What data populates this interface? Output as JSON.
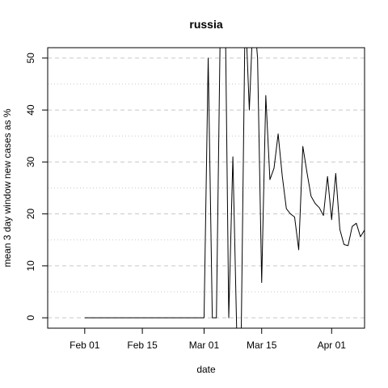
{
  "chart_data": {
    "type": "line",
    "title": "russia",
    "xlabel": "date",
    "ylabel": "mean  3  day window new cases as %",
    "x_axis": {
      "type": "date",
      "range": [
        "2020-01-23",
        "2020-04-09"
      ],
      "ticks": [
        {
          "date": "2020-02-01",
          "label": "Feb 01"
        },
        {
          "date": "2020-02-15",
          "label": "Feb 15"
        },
        {
          "date": "2020-03-01",
          "label": "Mar 01"
        },
        {
          "date": "2020-03-15",
          "label": "Mar 15"
        },
        {
          "date": "2020-04-01",
          "label": "Apr 01"
        }
      ]
    },
    "y_axis": {
      "range": [
        -2,
        52
      ],
      "ticks": [
        0,
        10,
        20,
        30,
        40,
        50
      ],
      "grid": "dashed",
      "minor_grid": "dotted"
    },
    "series": [
      {
        "color": "#000000",
        "points": [
          [
            "2020-02-01",
            0
          ],
          [
            "2020-02-02",
            0
          ],
          [
            "2020-02-03",
            0
          ],
          [
            "2020-02-04",
            0
          ],
          [
            "2020-02-05",
            0
          ],
          [
            "2020-02-06",
            0
          ],
          [
            "2020-02-07",
            0
          ],
          [
            "2020-02-08",
            0
          ],
          [
            "2020-02-09",
            0
          ],
          [
            "2020-02-10",
            0
          ],
          [
            "2020-02-11",
            0
          ],
          [
            "2020-02-12",
            0
          ],
          [
            "2020-02-13",
            0
          ],
          [
            "2020-02-14",
            0
          ],
          [
            "2020-02-15",
            0
          ],
          [
            "2020-02-16",
            0
          ],
          [
            "2020-02-17",
            0
          ],
          [
            "2020-02-18",
            0
          ],
          [
            "2020-02-19",
            0
          ],
          [
            "2020-02-20",
            0
          ],
          [
            "2020-02-21",
            0
          ],
          [
            "2020-02-22",
            0
          ],
          [
            "2020-02-23",
            0
          ],
          [
            "2020-02-24",
            0
          ],
          [
            "2020-02-25",
            0
          ],
          [
            "2020-02-26",
            0
          ],
          [
            "2020-02-27",
            0
          ],
          [
            "2020-02-28",
            0
          ],
          [
            "2020-02-29",
            0
          ],
          [
            "2020-03-01",
            0
          ],
          [
            "2020-03-02",
            50
          ],
          [
            "2020-03-03",
            0
          ],
          [
            "2020-03-04",
            0
          ],
          [
            "2020-03-05",
            60
          ],
          [
            "2020-03-06",
            70
          ],
          [
            "2020-03-07",
            0
          ],
          [
            "2020-03-08",
            31
          ],
          [
            "2020-03-09",
            -5
          ],
          [
            "2020-03-10",
            -5
          ],
          [
            "2020-03-11",
            60
          ],
          [
            "2020-03-12",
            40
          ],
          [
            "2020-03-13",
            60
          ],
          [
            "2020-03-14",
            50
          ],
          [
            "2020-03-15",
            6.8
          ],
          [
            "2020-03-16",
            42.8
          ],
          [
            "2020-03-17",
            26.6
          ],
          [
            "2020-03-18",
            28.8
          ],
          [
            "2020-03-19",
            35.4
          ],
          [
            "2020-03-20",
            27.3
          ],
          [
            "2020-03-21",
            21
          ],
          [
            "2020-03-22",
            20
          ],
          [
            "2020-03-23",
            19.4
          ],
          [
            "2020-03-24",
            13.1
          ],
          [
            "2020-03-25",
            33
          ],
          [
            "2020-03-26",
            28
          ],
          [
            "2020-03-27",
            23.4
          ],
          [
            "2020-03-28",
            22
          ],
          [
            "2020-03-29",
            21.2
          ],
          [
            "2020-03-30",
            19.7
          ],
          [
            "2020-03-31",
            27.2
          ],
          [
            "2020-04-01",
            18.9
          ],
          [
            "2020-04-02",
            27.8
          ],
          [
            "2020-04-03",
            17
          ],
          [
            "2020-04-04",
            14.1
          ],
          [
            "2020-04-05",
            13.9
          ],
          [
            "2020-04-06",
            17.6
          ],
          [
            "2020-04-07",
            18.2
          ],
          [
            "2020-04-08",
            15.6
          ],
          [
            "2020-04-09",
            16.9
          ]
        ]
      }
    ]
  }
}
